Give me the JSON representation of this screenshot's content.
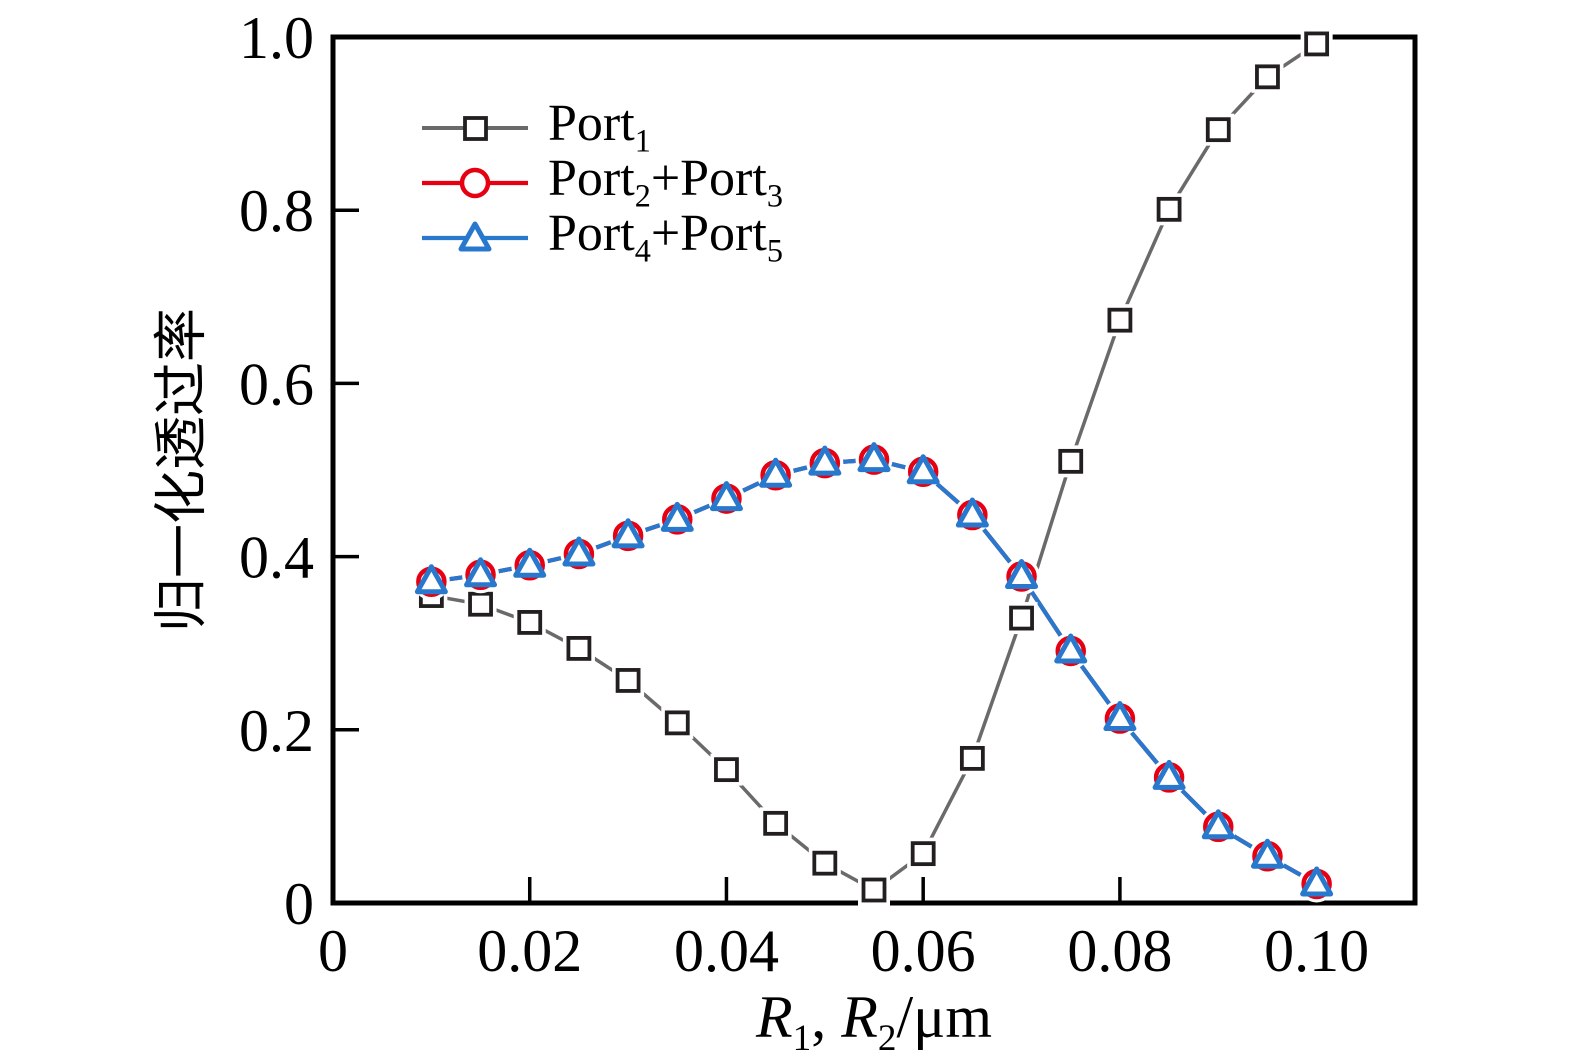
{
  "chart_data": {
    "type": "line",
    "x": [
      0.01,
      0.015,
      0.02,
      0.025,
      0.03,
      0.035,
      0.04,
      0.045,
      0.05,
      0.055,
      0.06,
      0.065,
      0.07,
      0.075,
      0.08,
      0.085,
      0.09,
      0.095,
      0.1
    ],
    "series": [
      {
        "name": "Port1",
        "marker": "square",
        "line_color": "#6a6a6a",
        "marker_color": "#231f20",
        "values": [
          0.355,
          0.345,
          0.324,
          0.294,
          0.257,
          0.208,
          0.154,
          0.092,
          0.046,
          0.015,
          0.057,
          0.167,
          0.329,
          0.51,
          0.673,
          0.801,
          0.893,
          0.954,
          0.992
        ]
      },
      {
        "name": "Port2+Port3",
        "marker": "circle",
        "line_color": "#e60012",
        "marker_color": "#e60012",
        "values": [
          0.371,
          0.379,
          0.39,
          0.403,
          0.424,
          0.443,
          0.467,
          0.494,
          0.508,
          0.512,
          0.498,
          0.448,
          0.377,
          0.291,
          0.213,
          0.145,
          0.088,
          0.054,
          0.022
        ]
      },
      {
        "name": "Port4+Port5",
        "marker": "triangle",
        "line_color": "#2878cd",
        "marker_color": "#2878cd",
        "values": [
          0.371,
          0.379,
          0.39,
          0.403,
          0.424,
          0.443,
          0.467,
          0.494,
          0.508,
          0.512,
          0.498,
          0.448,
          0.377,
          0.291,
          0.213,
          0.145,
          0.088,
          0.054,
          0.022
        ]
      }
    ],
    "xlim": [
      0,
      0.11
    ],
    "ylim": [
      0,
      1.0
    ],
    "grid": false,
    "legend_position": "upper-left-inside",
    "xticks": {
      "values": [
        0.02,
        0.04,
        0.06,
        0.08,
        0.1
      ],
      "labels": [
        "0.02",
        "0.04",
        "0.06",
        "0.08",
        "0.10"
      ],
      "origin_label": "0"
    },
    "yticks": {
      "values": [
        0,
        0.2,
        0.4,
        0.6,
        0.8,
        1.0
      ],
      "labels": [
        "0",
        "0.2",
        "0.4",
        "0.6",
        "0.8",
        "1.0"
      ]
    },
    "ylabel": "归一化透过率",
    "xlabel_parts": {
      "r1": "R",
      "s1": "1",
      "comma": ", ",
      "r2": "R",
      "s2": "2",
      "unit": "/μm"
    }
  },
  "legend": {
    "items": [
      {
        "text1": "Port",
        "sub1": "1"
      },
      {
        "text1": "Port",
        "sub1": "2",
        "text2": "+Port",
        "sub2": "3"
      },
      {
        "text1": "Port",
        "sub1": "4",
        "text2": "+Port",
        "sub2": "5"
      }
    ]
  }
}
